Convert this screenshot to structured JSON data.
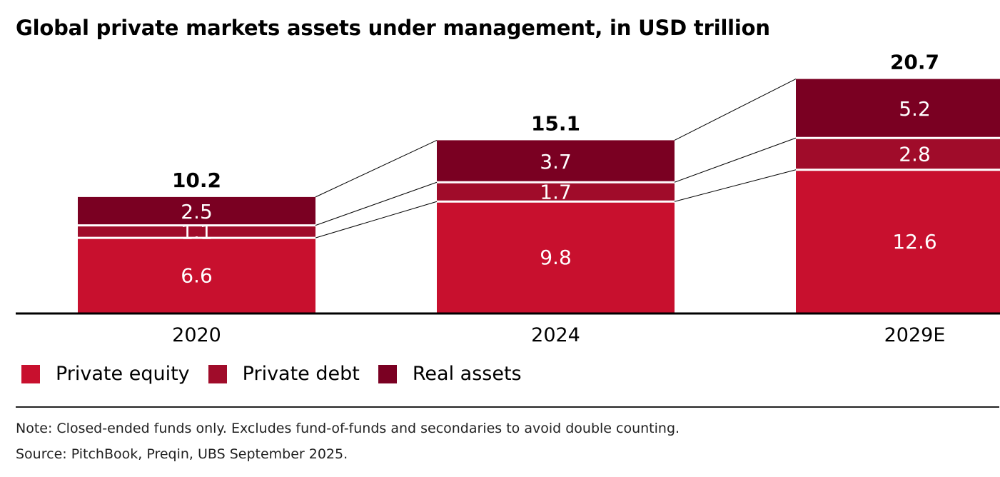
{
  "title": "Global private markets assets under management, in USD trillion",
  "note": "Note: Closed-ended funds only. Excludes fund-of-funds and secondaries to avoid double counting.",
  "source": "Source: PitchBook, Preqin, UBS September 2025.",
  "legend": [
    {
      "label": "Private equity",
      "color": "#c8102e"
    },
    {
      "label": "Private debt",
      "color": "#a00c2a"
    },
    {
      "label": "Real assets",
      "color": "#7a0022"
    }
  ],
  "chart_data": {
    "type": "bar",
    "stacked": true,
    "categories": [
      "2020",
      "2024",
      "2029E"
    ],
    "series": [
      {
        "name": "Private equity",
        "values": [
          6.6,
          9.8,
          12.6
        ],
        "color": "#c8102e"
      },
      {
        "name": "Private debt",
        "values": [
          1.1,
          1.7,
          2.8
        ],
        "color": "#a00c2a"
      },
      {
        "name": "Real assets",
        "values": [
          2.5,
          3.7,
          5.2
        ],
        "color": "#7a0022"
      }
    ],
    "totals": [
      "10.2",
      "15.1",
      "20.7"
    ],
    "segment_labels": [
      [
        "6.6",
        "1.1",
        "2.5"
      ],
      [
        "9.8",
        "1.7",
        "3.7"
      ],
      [
        "12.6",
        "2.8",
        "5.2"
      ]
    ],
    "ylim": [
      0,
      20.7
    ],
    "grid": false,
    "legend_position": "bottom-left"
  }
}
